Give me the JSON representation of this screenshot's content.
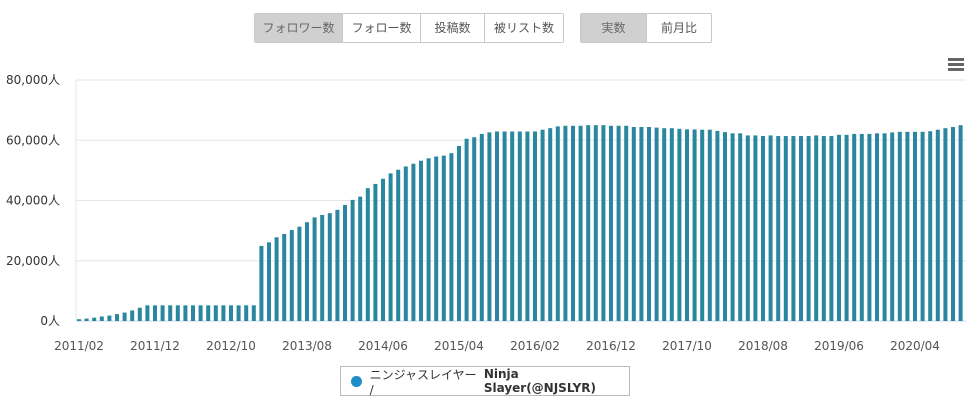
{
  "metric_tabs": [
    {
      "label": "フォロワー数",
      "active": true
    },
    {
      "label": "フォロー数",
      "active": false
    },
    {
      "label": "投稿数",
      "active": false
    },
    {
      "label": "被リスト数",
      "active": false
    }
  ],
  "mode_tabs": [
    {
      "label": "実数",
      "active": true
    },
    {
      "label": "前月比",
      "active": false
    }
  ],
  "menu_icon": "hamburger-menu-icon",
  "legend": {
    "label_jp": "ニンジャスレイヤー / ",
    "label_en": "Ninja Slayer(@NJSLYR)",
    "color": "#1f8dc8"
  },
  "chart_data": {
    "type": "bar",
    "title": "",
    "xlabel": "",
    "ylabel": "",
    "ylim": [
      0,
      80000
    ],
    "y_ticks": [
      "0人",
      "20,000人",
      "40,000人",
      "60,000人",
      "80,000人"
    ],
    "y_tick_values": [
      0,
      20000,
      40000,
      60000,
      80000
    ],
    "x_tick_labels": [
      "2011/02",
      "2011/12",
      "2012/10",
      "2013/08",
      "2014/06",
      "2015/04",
      "2016/02",
      "2016/12",
      "2017/10",
      "2018/08",
      "2019/06",
      "2020/04"
    ],
    "grid": true,
    "legend_placement": "bottom",
    "bar_color": "#2a87a0",
    "categories": [
      "2011/02",
      "2011/03",
      "2011/04",
      "2011/05",
      "2011/06",
      "2011/07",
      "2011/08",
      "2011/09",
      "2011/10",
      "2011/11",
      "2011/12",
      "2012/01",
      "2012/02",
      "2012/03",
      "2012/04",
      "2012/05",
      "2012/06",
      "2012/07",
      "2012/08",
      "2012/09",
      "2012/10",
      "2012/11",
      "2012/12",
      "2013/01",
      "2013/02",
      "2013/03",
      "2013/04",
      "2013/05",
      "2013/06",
      "2013/07",
      "2013/08",
      "2013/09",
      "2013/10",
      "2013/11",
      "2013/12",
      "2014/01",
      "2014/02",
      "2014/03",
      "2014/04",
      "2014/05",
      "2014/06",
      "2014/07",
      "2014/08",
      "2014/09",
      "2014/10",
      "2014/11",
      "2014/12",
      "2015/01",
      "2015/02",
      "2015/03",
      "2015/04",
      "2015/05",
      "2015/06",
      "2015/07",
      "2015/08",
      "2015/09",
      "2015/10",
      "2015/11",
      "2015/12",
      "2016/01",
      "2016/02",
      "2016/03",
      "2016/04",
      "2016/05",
      "2016/06",
      "2016/07",
      "2016/08",
      "2016/09",
      "2016/10",
      "2016/11",
      "2016/12",
      "2017/01",
      "2017/02",
      "2017/03",
      "2017/04",
      "2017/05",
      "2017/06",
      "2017/07",
      "2017/08",
      "2017/09",
      "2017/10",
      "2017/11",
      "2017/12",
      "2018/01",
      "2018/02",
      "2018/03",
      "2018/04",
      "2018/05",
      "2018/06",
      "2018/07",
      "2018/08",
      "2018/09",
      "2018/10",
      "2018/11",
      "2018/12",
      "2019/01",
      "2019/02",
      "2019/03",
      "2019/04",
      "2019/05",
      "2019/06",
      "2019/07",
      "2019/08",
      "2019/09",
      "2019/10",
      "2019/11",
      "2019/12",
      "2020/01",
      "2020/02",
      "2020/03",
      "2020/04",
      "2020/05",
      "2020/06",
      "2020/07",
      "2020/08",
      "2020/09",
      "2020/10"
    ],
    "series": [
      {
        "name": "ニンジャスレイヤー / Ninja Slayer(@NJSLYR)",
        "values": [
          600,
          800,
          1100,
          1500,
          1800,
          2300,
          2800,
          3500,
          4400,
          5200,
          5200,
          5200,
          5200,
          5200,
          5200,
          5200,
          5200,
          5200,
          5200,
          5200,
          5200,
          5200,
          5200,
          5200,
          24900,
          26100,
          27800,
          28900,
          30200,
          31300,
          32800,
          34400,
          35200,
          35800,
          36900,
          38500,
          40200,
          41300,
          44100,
          45500,
          47200,
          49000,
          50200,
          51300,
          52200,
          53200,
          54000,
          54600,
          54900,
          55700,
          58100,
          60500,
          61000,
          62100,
          62600,
          62900,
          62900,
          62900,
          62900,
          62900,
          62900,
          63500,
          64000,
          64600,
          64800,
          64800,
          64800,
          65000,
          65000,
          65000,
          64800,
          64800,
          64800,
          64400,
          64400,
          64400,
          64200,
          64000,
          64000,
          63800,
          63600,
          63600,
          63500,
          63500,
          63100,
          62700,
          62300,
          62300,
          61600,
          61600,
          61400,
          61600,
          61400,
          61400,
          61400,
          61400,
          61400,
          61600,
          61400,
          61400,
          61800,
          61800,
          62100,
          62100,
          62100,
          62300,
          62300,
          62600,
          62800,
          62800,
          62800,
          62800,
          63000,
          63500,
          64000,
          64400,
          65000
        ]
      }
    ]
  }
}
